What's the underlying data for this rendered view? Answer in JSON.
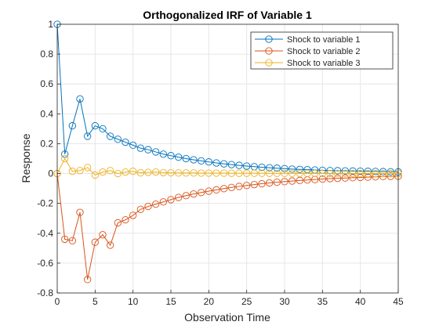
{
  "chart_data": {
    "type": "line",
    "title": "Orthogonalized IRF of Variable 1",
    "xlabel": "Observation Time",
    "ylabel": "Response",
    "xlim": [
      0,
      45
    ],
    "ylim": [
      -0.8,
      1
    ],
    "xticks": [
      0,
      5,
      10,
      15,
      20,
      25,
      30,
      35,
      40,
      45
    ],
    "yticks": [
      -0.8,
      -0.6,
      -0.4,
      -0.2,
      0,
      0.2,
      0.4,
      0.6,
      0.8,
      1
    ],
    "xtick_labels": [
      "0",
      "5",
      "10",
      "15",
      "20",
      "25",
      "30",
      "35",
      "40",
      "45"
    ],
    "ytick_labels": [
      "-0.8",
      "-0.6",
      "-0.4",
      "-0.2",
      "0",
      "0.2",
      "0.4",
      "0.6",
      "0.8",
      "1"
    ],
    "grid": true,
    "legend_position": "top-right",
    "marker": "circle",
    "x": [
      0,
      1,
      2,
      3,
      4,
      5,
      6,
      7,
      8,
      9,
      10,
      11,
      12,
      13,
      14,
      15,
      16,
      17,
      18,
      19,
      20,
      21,
      22,
      23,
      24,
      25,
      26,
      27,
      28,
      29,
      30,
      31,
      32,
      33,
      34,
      35,
      36,
      37,
      38,
      39,
      40,
      41,
      42,
      43,
      44,
      45
    ],
    "series": [
      {
        "name": "Shock to variable 1",
        "color": "#0072BD",
        "values": [
          1.0,
          0.13,
          0.32,
          0.5,
          0.25,
          0.32,
          0.3,
          0.25,
          0.23,
          0.21,
          0.19,
          0.17,
          0.16,
          0.145,
          0.13,
          0.12,
          0.11,
          0.1,
          0.092,
          0.085,
          0.078,
          0.071,
          0.065,
          0.06,
          0.055,
          0.05,
          0.046,
          0.042,
          0.039,
          0.036,
          0.033,
          0.03,
          0.028,
          0.026,
          0.024,
          0.022,
          0.02,
          0.019,
          0.018,
          0.017,
          0.016,
          0.015,
          0.014,
          0.013,
          0.012,
          0.011
        ]
      },
      {
        "name": "Shock to variable 2",
        "color": "#D95319",
        "values": [
          0.0,
          -0.44,
          -0.45,
          -0.26,
          -0.71,
          -0.46,
          -0.41,
          -0.48,
          -0.33,
          -0.31,
          -0.28,
          -0.24,
          -0.22,
          -0.205,
          -0.19,
          -0.175,
          -0.16,
          -0.148,
          -0.137,
          -0.127,
          -0.118,
          -0.109,
          -0.101,
          -0.093,
          -0.086,
          -0.08,
          -0.074,
          -0.068,
          -0.063,
          -0.058,
          -0.054,
          -0.05,
          -0.046,
          -0.043,
          -0.04,
          -0.037,
          -0.034,
          -0.032,
          -0.03,
          -0.028,
          -0.026,
          -0.024,
          -0.022,
          -0.02,
          -0.019,
          -0.018
        ]
      },
      {
        "name": "Shock to variable 3",
        "color": "#EDB120",
        "values": [
          0.0,
          0.1,
          0.015,
          0.02,
          0.04,
          -0.01,
          0.01,
          0.02,
          0.0,
          0.01,
          0.015,
          0.005,
          0.008,
          0.01,
          0.006,
          0.005,
          0.004,
          0.004,
          0.004,
          0.003,
          0.003,
          0.003,
          0.003,
          0.002,
          0.002,
          0.002,
          0.002,
          0.002,
          0.002,
          0.001,
          0.001,
          0.001,
          0.001,
          0.001,
          0.001,
          0.001,
          0.001,
          0.001,
          0.001,
          0.0,
          0.0,
          0.0,
          0.0,
          0.0,
          0.0,
          0.0
        ]
      }
    ]
  }
}
